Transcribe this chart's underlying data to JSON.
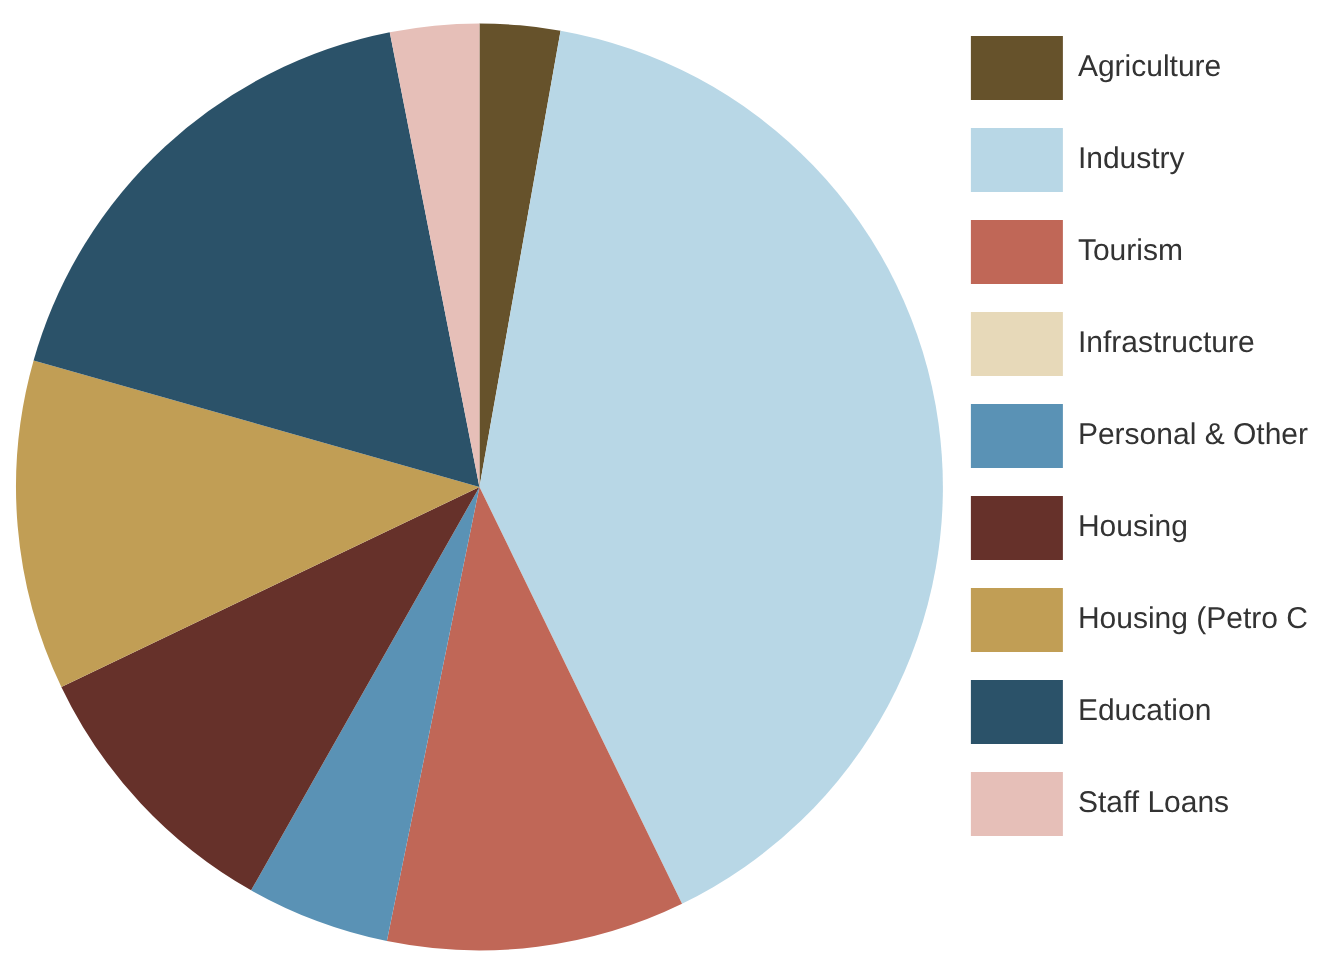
{
  "chart_data": {
    "type": "pie",
    "categories": [
      "Agriculture",
      "Industry",
      "Tourism",
      "Infrastructure",
      "Personal & Other",
      "Housing",
      "Housing (Petro C",
      "Education",
      "Staff Loans"
    ],
    "values": [
      2.8,
      40,
      10.4,
      0,
      5,
      9.7,
      11.5,
      17.5,
      3.1
    ],
    "colors": [
      "#66522b",
      "#b8d7e6",
      "#c06757",
      "#e7d9b9",
      "#5a92b5",
      "#66312a",
      "#c19e55",
      "#2b5269",
      "#e6bfb8"
    ],
    "legend": "right"
  }
}
